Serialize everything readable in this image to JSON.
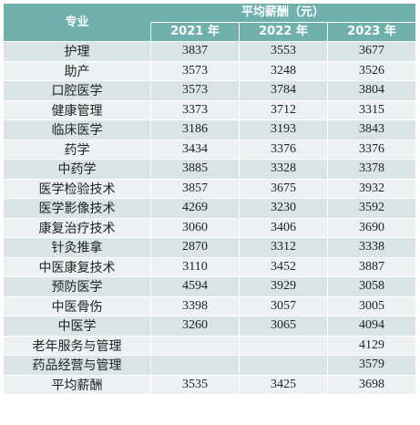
{
  "header": {
    "major_label": "专业",
    "group_label": "平均薪酬（元）",
    "years": [
      "2021 年",
      "2022 年",
      "2023 年"
    ]
  },
  "rows": [
    {
      "name": "护理",
      "values": [
        "3837",
        "3553",
        "3677"
      ]
    },
    {
      "name": "助产",
      "values": [
        "3573",
        "3248",
        "3526"
      ]
    },
    {
      "name": "口腔医学",
      "values": [
        "3573",
        "3784",
        "3804"
      ]
    },
    {
      "name": "健康管理",
      "values": [
        "3373",
        "3712",
        "3315"
      ]
    },
    {
      "name": "临床医学",
      "values": [
        "3186",
        "3193",
        "3843"
      ]
    },
    {
      "name": "药学",
      "values": [
        "3434",
        "3376",
        "3376"
      ]
    },
    {
      "name": "中药学",
      "values": [
        "3885",
        "3328",
        "3378"
      ]
    },
    {
      "name": "医学检验技术",
      "values": [
        "3857",
        "3675",
        "3932"
      ]
    },
    {
      "name": "医学影像技术",
      "values": [
        "4269",
        "3230",
        "3592"
      ]
    },
    {
      "name": "康复治疗技术",
      "values": [
        "3060",
        "3406",
        "3690"
      ]
    },
    {
      "name": "针灸推拿",
      "values": [
        "2870",
        "3312",
        "3338"
      ]
    },
    {
      "name": "中医康复技术",
      "values": [
        "3110",
        "3452",
        "3887"
      ]
    },
    {
      "name": "预防医学",
      "values": [
        "4594",
        "3929",
        "3058"
      ]
    },
    {
      "name": "中医骨伤",
      "values": [
        "3398",
        "3057",
        "3005"
      ]
    },
    {
      "name": "中医学",
      "values": [
        "3260",
        "3065",
        "4094"
      ]
    },
    {
      "name": "老年服务与管理",
      "values": [
        "",
        "",
        "4129"
      ]
    },
    {
      "name": "药品经营与管理",
      "values": [
        "",
        "",
        "3579"
      ]
    },
    {
      "name": "平均薪酬",
      "values": [
        "3535",
        "3425",
        "3698"
      ]
    }
  ],
  "colors": {
    "header_bg": "#6fb0ad",
    "row_odd": "#dbe4e5",
    "row_even": "#edf1f1"
  }
}
